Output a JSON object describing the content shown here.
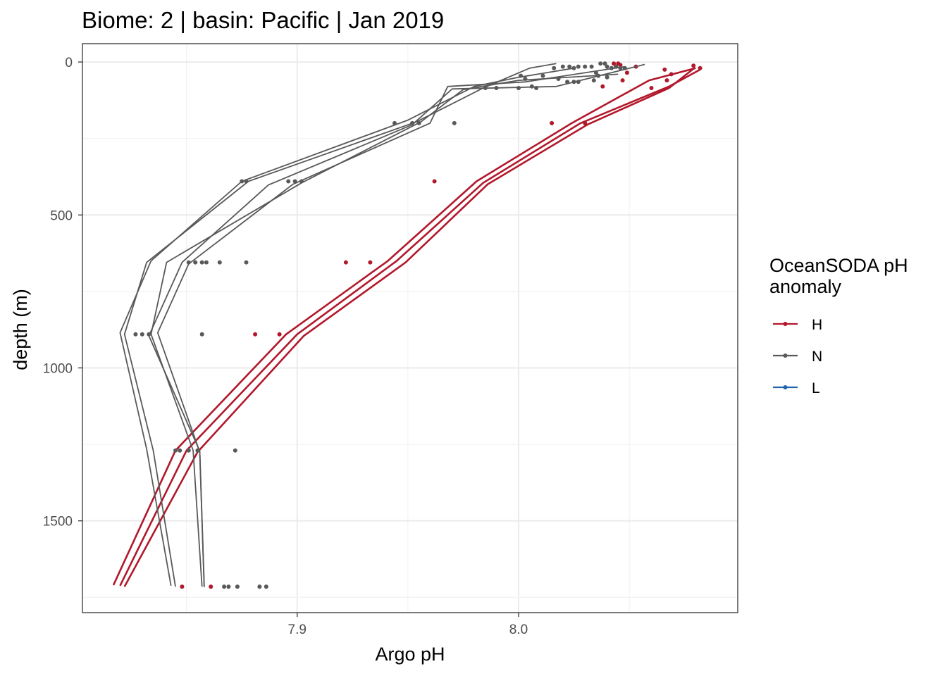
{
  "chart_data": {
    "type": "line",
    "title": "Biome: 2 | basin: Pacific  | Jan 2019",
    "xlabel": "Argo pH",
    "ylabel": "depth (m)",
    "xlim": [
      7.803,
      8.099
    ],
    "ylim": [
      1800,
      -60
    ],
    "y_reversed": true,
    "x_ticks": [
      7.9,
      8.0
    ],
    "x_tick_labels": [
      "7.9",
      "8.0"
    ],
    "y_ticks": [
      0,
      500,
      1000,
      1500
    ],
    "y_tick_labels": [
      "0",
      "500",
      "1000",
      "1500"
    ],
    "grid": true,
    "legend": {
      "title": "OceanSODA pH\nanomaly",
      "position": "right",
      "entries": [
        {
          "label": "H",
          "color": "#b2182b"
        },
        {
          "label": "N",
          "color": "#595959"
        },
        {
          "label": "L",
          "color": "#2166ac"
        }
      ]
    },
    "series": [
      {
        "name": "H",
        "color": "#b2182b",
        "lines": [
          [
            [
              8.08,
              20
            ],
            [
              8.059,
              60
            ],
            [
              8.024,
              200
            ],
            [
              7.981,
              390
            ],
            [
              7.941,
              650
            ],
            [
              7.895,
              890
            ],
            [
              7.845,
              1270
            ],
            [
              7.817,
              1710
            ]
          ],
          [
            [
              8.082,
              25
            ],
            [
              8.068,
              80
            ],
            [
              8.028,
              200
            ],
            [
              7.984,
              395
            ],
            [
              7.945,
              650
            ],
            [
              7.9,
              890
            ],
            [
              7.85,
              1270
            ],
            [
              7.82,
              1712
            ]
          ],
          [
            [
              8.079,
              22
            ],
            [
              8.068,
              85
            ],
            [
              8.031,
              205
            ],
            [
              7.986,
              400
            ],
            [
              7.949,
              655
            ],
            [
              7.903,
              895
            ],
            [
              7.855,
              1275
            ],
            [
              7.822,
              1715
            ]
          ]
        ],
        "points": [
          [
            8.079,
            12
          ],
          [
            8.082,
            20
          ],
          [
            8.066,
            25
          ],
          [
            8.069,
            40
          ],
          [
            8.067,
            60
          ],
          [
            8.053,
            15
          ],
          [
            8.049,
            35
          ],
          [
            8.046,
            10
          ],
          [
            8.044,
            15
          ],
          [
            8.045,
            5
          ],
          [
            8.043,
            5
          ],
          [
            8.047,
            60
          ],
          [
            8.06,
            85
          ],
          [
            8.038,
            80
          ],
          [
            8.015,
            200
          ],
          [
            8.03,
            200
          ],
          [
            7.962,
            390
          ],
          [
            7.922,
            655
          ],
          [
            7.933,
            655
          ],
          [
            7.881,
            890
          ],
          [
            7.892,
            890
          ],
          [
            7.848,
            1715
          ],
          [
            7.861,
            1715
          ]
        ]
      },
      {
        "name": "N",
        "color": "#595959",
        "lines": [
          [
            [
              8.017,
              5
            ],
            [
              8.005,
              20
            ],
            [
              7.984,
              85
            ],
            [
              7.954,
              195
            ],
            [
              7.878,
              390
            ],
            [
              7.832,
              655
            ],
            [
              7.822,
              890
            ],
            [
              7.835,
              1270
            ],
            [
              7.845,
              1715
            ]
          ],
          [
            [
              8.025,
              20
            ],
            [
              8.0,
              50
            ],
            [
              7.98,
              80
            ],
            [
              7.95,
              190
            ],
            [
              7.875,
              390
            ],
            [
              7.834,
              650
            ],
            [
              7.82,
              885
            ],
            [
              7.832,
              1265
            ],
            [
              7.843,
              1712
            ]
          ],
          [
            [
              8.045,
              40
            ],
            [
              8.0,
              60
            ],
            [
              7.975,
              90
            ],
            [
              7.956,
              195
            ],
            [
              7.902,
              395
            ],
            [
              7.841,
              655
            ],
            [
              7.834,
              890
            ],
            [
              7.853,
              1270
            ],
            [
              7.857,
              1715
            ]
          ],
          [
            [
              8.048,
              15
            ],
            [
              8.003,
              65
            ],
            [
              7.968,
              80
            ],
            [
              7.96,
              200
            ],
            [
              7.898,
              400
            ],
            [
              7.851,
              660
            ],
            [
              7.837,
              885
            ],
            [
              7.856,
              1275
            ],
            [
              7.858,
              1712
            ]
          ],
          [
            [
              8.057,
              8
            ],
            [
              8.017,
              80
            ],
            [
              7.97,
              88
            ],
            [
              7.952,
              205
            ],
            [
              7.887,
              402
            ],
            [
              7.848,
              655
            ],
            [
              7.833,
              895
            ],
            [
              7.856,
              1272
            ],
            [
              7.858,
              1717
            ]
          ]
        ],
        "points": [
          [
            8.016,
            20
          ],
          [
            8.02,
            15
          ],
          [
            8.023,
            15
          ],
          [
            8.025,
            20
          ],
          [
            8.027,
            15
          ],
          [
            8.03,
            15
          ],
          [
            8.033,
            15
          ],
          [
            8.037,
            5
          ],
          [
            8.039,
            5
          ],
          [
            8.04,
            15
          ],
          [
            8.042,
            20
          ],
          [
            8.044,
            15
          ],
          [
            8.046,
            20
          ],
          [
            8.048,
            20
          ],
          [
            8.001,
            45
          ],
          [
            8.003,
            55
          ],
          [
            8.011,
            45
          ],
          [
            8.018,
            55
          ],
          [
            8.022,
            65
          ],
          [
            8.025,
            65
          ],
          [
            8.027,
            65
          ],
          [
            8.036,
            45
          ],
          [
            8.04,
            50
          ],
          [
            8.035,
            35
          ],
          [
            8.034,
            60
          ],
          [
            8.0,
            85
          ],
          [
            8.006,
            80
          ],
          [
            7.985,
            85
          ],
          [
            7.99,
            85
          ],
          [
            8.008,
            85
          ],
          [
            7.944,
            200
          ],
          [
            7.952,
            200
          ],
          [
            7.955,
            200
          ],
          [
            7.971,
            200
          ],
          [
            7.875,
            390
          ],
          [
            7.877,
            390
          ],
          [
            7.896,
            390
          ],
          [
            7.899,
            390
          ],
          [
            7.902,
            390
          ],
          [
            7.851,
            655
          ],
          [
            7.854,
            655
          ],
          [
            7.857,
            655
          ],
          [
            7.859,
            655
          ],
          [
            7.865,
            655
          ],
          [
            7.877,
            655
          ],
          [
            7.827,
            890
          ],
          [
            7.83,
            890
          ],
          [
            7.833,
            890
          ],
          [
            7.857,
            890
          ],
          [
            7.845,
            1270
          ],
          [
            7.847,
            1270
          ],
          [
            7.851,
            1270
          ],
          [
            7.855,
            1270
          ],
          [
            7.872,
            1270
          ],
          [
            7.867,
            1715
          ],
          [
            7.869,
            1715
          ],
          [
            7.873,
            1715
          ],
          [
            7.883,
            1715
          ],
          [
            7.886,
            1715
          ]
        ]
      },
      {
        "name": "L",
        "color": "#2166ac",
        "lines": [],
        "points": []
      }
    ]
  }
}
